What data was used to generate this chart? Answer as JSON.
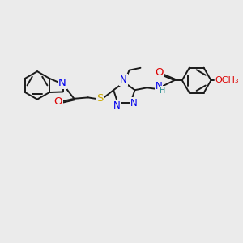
{
  "bg_color": "#ebebeb",
  "bond_color": "#1a1a1a",
  "bond_lw": 1.4,
  "atom_colors": {
    "N": "#0000ee",
    "O": "#dd0000",
    "S": "#ccaa00",
    "H": "#2a9090",
    "C": "#1a1a1a"
  },
  "fs": 8.5,
  "dbl_off": 0.055
}
